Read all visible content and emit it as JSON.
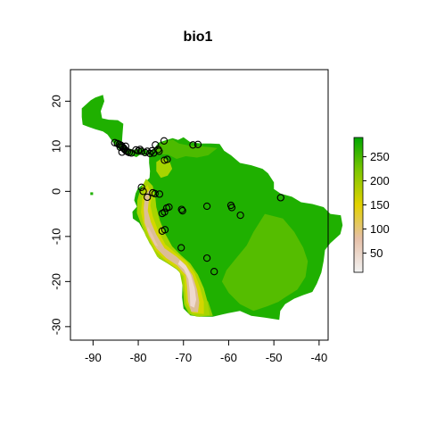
{
  "map": {
    "title": "bio1",
    "x_ticks": [
      {
        "value": -90,
        "label": "-90"
      },
      {
        "value": -80,
        "label": "-80"
      },
      {
        "value": -70,
        "label": "-70"
      },
      {
        "value": -60,
        "label": "-60"
      },
      {
        "value": -50,
        "label": "-50"
      },
      {
        "value": -40,
        "label": "-40"
      }
    ],
    "y_ticks": [
      {
        "value": 20,
        "label": "20"
      },
      {
        "value": 10,
        "label": "10"
      },
      {
        "value": 0,
        "label": "0"
      },
      {
        "value": -10,
        "label": "-10"
      },
      {
        "value": -20,
        "label": "-20"
      },
      {
        "value": -30,
        "label": "-30"
      }
    ],
    "xlim": [
      -95,
      -38
    ],
    "ylim": [
      -33,
      27
    ]
  },
  "legend": {
    "range": [
      10,
      290
    ],
    "ticks": [
      {
        "value": 50,
        "label": "50"
      },
      {
        "value": 100,
        "label": "100"
      },
      {
        "value": 150,
        "label": "150"
      },
      {
        "value": 200,
        "label": "200"
      },
      {
        "value": 250,
        "label": "250"
      }
    ],
    "colors": [
      "#f2f2f2",
      "#e6c0a8",
      "#e3d200",
      "#7fc700",
      "#00a600"
    ]
  },
  "occurrences": [
    [
      -84.6,
      10.6
    ],
    [
      -84.2,
      10.4
    ],
    [
      -83.8,
      10.2
    ],
    [
      -83.5,
      9.9
    ],
    [
      -83.2,
      9.6
    ],
    [
      -83.0,
      9.3
    ],
    [
      -82.7,
      9.0
    ],
    [
      -82.4,
      8.8
    ],
    [
      -82.0,
      8.6
    ],
    [
      -83.6,
      8.7
    ],
    [
      -84.0,
      9.8
    ],
    [
      -82.8,
      10.0
    ],
    [
      -81.5,
      8.5
    ],
    [
      -80.5,
      9.2
    ],
    [
      -80.0,
      9.0
    ],
    [
      -79.6,
      9.3
    ],
    [
      -79.3,
      8.9
    ],
    [
      -78.5,
      8.6
    ],
    [
      -78.0,
      8.9
    ],
    [
      -77.4,
      8.4
    ],
    [
      -77.0,
      9.0
    ],
    [
      -76.6,
      8.5
    ],
    [
      -76.2,
      10.3
    ],
    [
      -75.6,
      9.3
    ],
    [
      -74.3,
      11.2
    ],
    [
      -67.9,
      10.3
    ],
    [
      -66.8,
      10.4
    ],
    [
      -75.4,
      8.9
    ],
    [
      -74.2,
      6.9
    ],
    [
      -73.6,
      7.1
    ],
    [
      -79.3,
      0.9
    ],
    [
      -78.9,
      0.0
    ],
    [
      -78.0,
      -1.3
    ],
    [
      -76.8,
      -0.3
    ],
    [
      -76.3,
      -0.5
    ],
    [
      -75.3,
      -0.6
    ],
    [
      -74.7,
      -4.9
    ],
    [
      -74.2,
      -4.6
    ],
    [
      -73.7,
      -3.7
    ],
    [
      -73.2,
      -3.5
    ],
    [
      -70.4,
      -4.0
    ],
    [
      -70.2,
      -4.3
    ],
    [
      -74.1,
      -8.5
    ],
    [
      -74.7,
      -8.8
    ],
    [
      -70.5,
      -12.5
    ],
    [
      -64.8,
      -3.3
    ],
    [
      -59.5,
      -3.1
    ],
    [
      -59.3,
      -3.6
    ],
    [
      -57.4,
      -5.3
    ],
    [
      -48.5,
      -1.4
    ],
    [
      -64.8,
      -14.8
    ],
    [
      -63.2,
      -17.8
    ],
    [
      -85.2,
      10.8
    ]
  ]
}
